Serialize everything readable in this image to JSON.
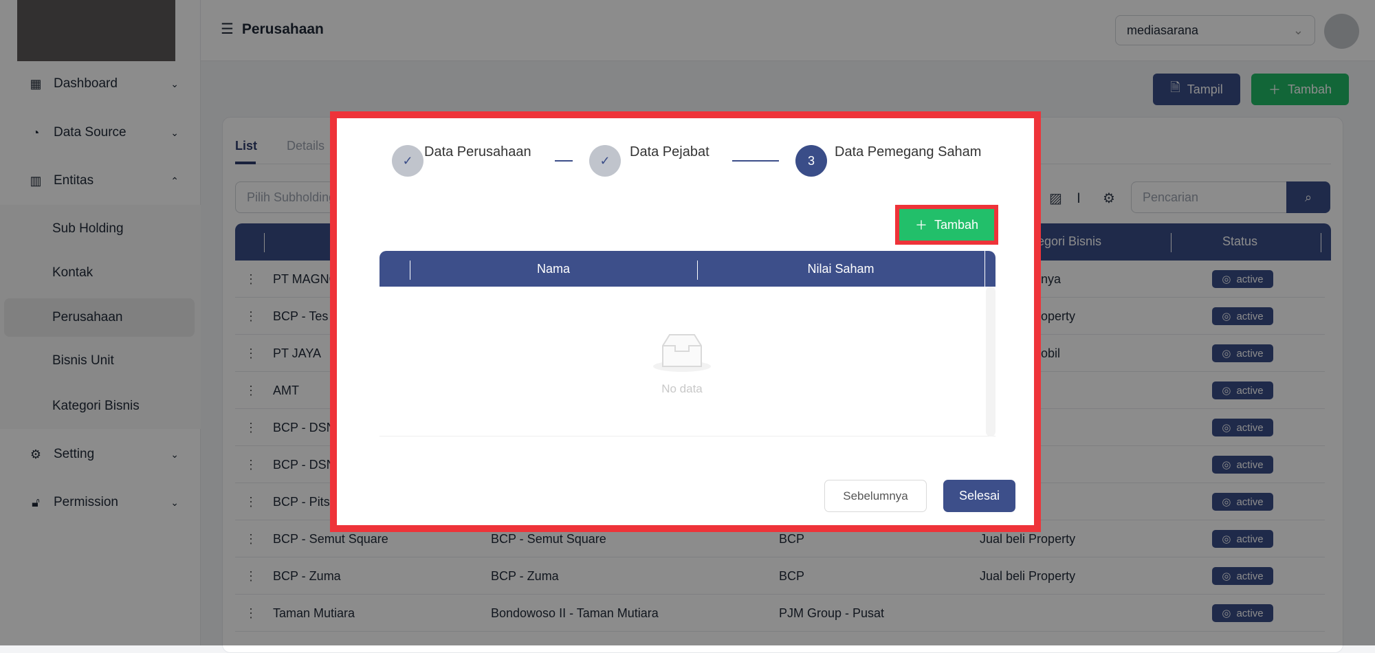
{
  "sidebar": {
    "items": [
      {
        "label": "Dashboard",
        "icon": "grid-icon",
        "chevron": "down"
      },
      {
        "label": "Data Source",
        "icon": "pie-chart-icon",
        "chevron": "down"
      },
      {
        "label": "Entitas",
        "icon": "sliders-icon",
        "chevron": "up"
      },
      {
        "label": "Setting",
        "icon": "gear-icon",
        "chevron": "down"
      },
      {
        "label": "Permission",
        "icon": "lock-icon",
        "chevron": "down"
      }
    ],
    "subitems": [
      "Sub Holding",
      "Kontak",
      "Perusahaan",
      "Bisnis Unit",
      "Kategori Bisnis"
    ],
    "selected": "Perusahaan"
  },
  "header": {
    "title": "Perusahaan",
    "company": "mediasarana"
  },
  "toolbar": {
    "tampil": "Tampil",
    "tambah": "Tambah"
  },
  "tabs": [
    "List",
    "Details"
  ],
  "filter": {
    "placeholder": "Pilih Subholding"
  },
  "search": {
    "placeholder": "Pencarian"
  },
  "table": {
    "headers": {
      "kategori": "Kategori Bisnis",
      "status": "Status"
    },
    "rows": [
      {
        "name": "PT MAGNO",
        "c2": "",
        "c3": "",
        "c4": "nya",
        "status": "active"
      },
      {
        "name": "BCP - Tes",
        "c2": "",
        "c3": "",
        "c4": "operty",
        "status": "active"
      },
      {
        "name": "PT JAYA",
        "c2": "",
        "c3": "",
        "c4": "obil",
        "status": "active"
      },
      {
        "name": "AMT",
        "c2": "",
        "c3": "",
        "c4": "",
        "status": "active"
      },
      {
        "name": "BCP - DSN",
        "c2": "",
        "c3": "",
        "c4": "",
        "status": "active"
      },
      {
        "name": "BCP - DSN",
        "c2": "",
        "c3": "",
        "c4": "",
        "status": "active"
      },
      {
        "name": "BCP - Pits",
        "c2": "",
        "c3": "",
        "c4": "",
        "status": "active"
      },
      {
        "name": "BCP - Semut Square",
        "c2": "BCP - Semut Square",
        "c3": "BCP",
        "c4": "Jual beli Property",
        "status": "active"
      },
      {
        "name": "BCP - Zuma",
        "c2": "BCP - Zuma",
        "c3": "BCP",
        "c4": "Jual beli Property",
        "status": "active"
      },
      {
        "name": "Taman Mutiara",
        "c2": "Bondowoso II - Taman Mutiara",
        "c3": "PJM Group - Pusat",
        "c4": "",
        "status": "active"
      }
    ]
  },
  "modal": {
    "steps": [
      {
        "label": "Data Perusahaan",
        "state": "done",
        "marker": "✓"
      },
      {
        "label": "Data Pejabat",
        "state": "done",
        "marker": "✓"
      },
      {
        "label": "Data Pemegang Saham",
        "state": "current",
        "marker": "3"
      }
    ],
    "tambah": "Tambah",
    "columns": [
      "Nama",
      "Nilai Saham"
    ],
    "empty": "No data",
    "prev": "Sebelumnya",
    "finish": "Selesai"
  },
  "colors": {
    "primary": "#3a4d88",
    "success": "#22bb66",
    "highlight": "#ee3339"
  }
}
